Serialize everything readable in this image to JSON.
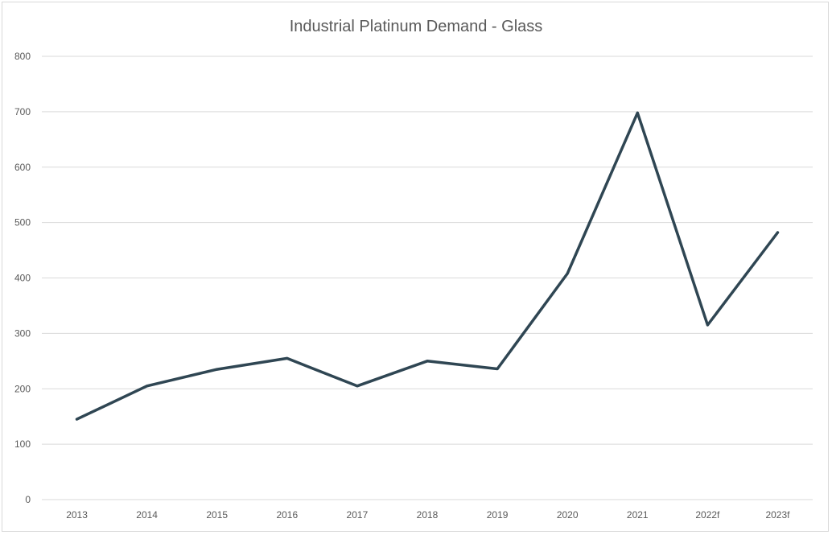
{
  "chart_data": {
    "type": "line",
    "title": "Industrial Platinum Demand - Glass",
    "xlabel": "",
    "ylabel": "",
    "categories": [
      "2013",
      "2014",
      "2015",
      "2016",
      "2017",
      "2018",
      "2019",
      "2020",
      "2021",
      "2022f",
      "2023f"
    ],
    "series": [
      {
        "values": [
          145,
          205,
          235,
          255,
          205,
          250,
          236,
          408,
          698,
          315,
          482
        ]
      }
    ],
    "ylim": [
      0,
      800
    ],
    "yticks": [
      "0",
      "100",
      "200",
      "300",
      "400",
      "500",
      "600",
      "700",
      "800"
    ],
    "grid": true,
    "line_color": "#2f4653",
    "gridline_color": "#d9d9d9"
  }
}
